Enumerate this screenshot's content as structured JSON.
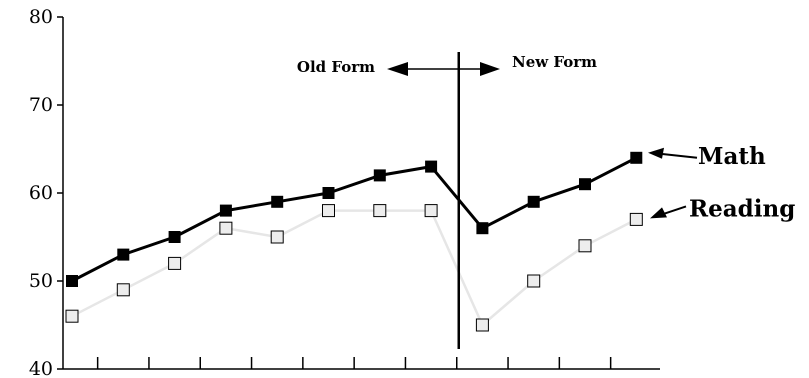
{
  "chart_data": {
    "type": "line",
    "title": "",
    "xlabel": "",
    "ylabel": "",
    "ylim": [
      40,
      80
    ],
    "yticks": [
      "40",
      "50",
      "60",
      "70",
      "80"
    ],
    "x": [
      1,
      2,
      3,
      4,
      5,
      6,
      7,
      8,
      9,
      10,
      11,
      12
    ],
    "grid": false,
    "form_change_after_x": 8,
    "annotations": {
      "old_form": "Old Form",
      "new_form": "New Form"
    },
    "series": [
      {
        "name": "Math",
        "values": [
          50,
          53,
          55,
          58,
          59,
          60,
          62,
          63,
          56,
          59,
          61,
          64
        ],
        "line_color": "#000000",
        "marker_fill": "#000000"
      },
      {
        "name": "Reading",
        "values": [
          46,
          49,
          52,
          56,
          55,
          58,
          58,
          58,
          45,
          50,
          54,
          57
        ],
        "line_color": "#e6e6e6",
        "marker_fill": "#ededed"
      }
    ]
  }
}
